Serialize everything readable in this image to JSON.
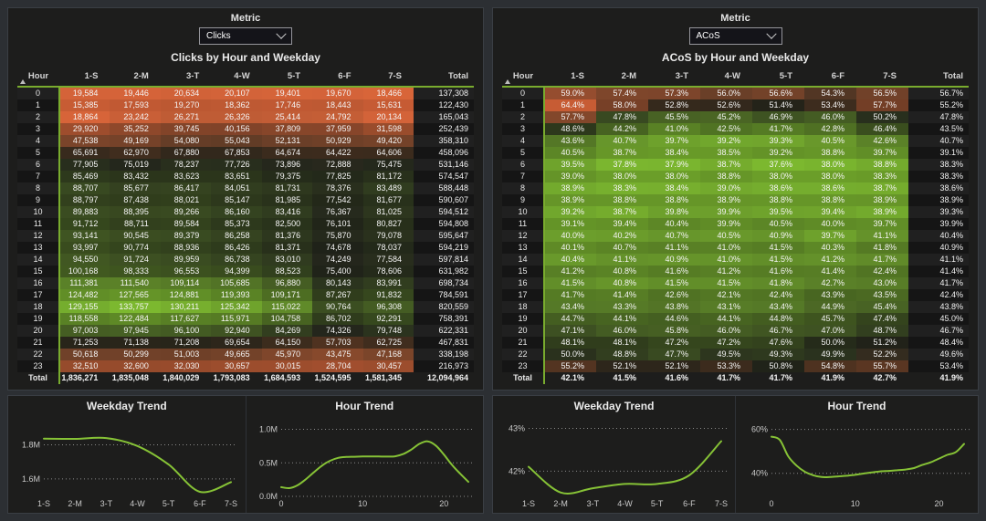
{
  "colors": {
    "page_bg": "#2c2f33",
    "panel_bg": "#1d1d1c",
    "panel_border": "#3a3e44",
    "heat_low": "#e2683b",
    "heat_mid": "#23261c",
    "heat_high": "#7cb82f",
    "accent_green": "#79ac2e",
    "trend_line_green": "#86c236"
  },
  "left_panel": {
    "slicer_label": "Metric",
    "slicer_value": "Clicks",
    "title": "Clicks by Hour and Weekday",
    "columns": [
      "Hour",
      "1-S",
      "2-M",
      "3-T",
      "4-W",
      "5-T",
      "6-F",
      "7-S",
      "Total"
    ],
    "heat": {
      "min": 15385,
      "max": 133757,
      "invert": false
    },
    "rows": [
      {
        "hour": "0",
        "cells": [
          "19,584",
          "19,446",
          "20,634",
          "20,107",
          "19,401",
          "19,670",
          "18,466"
        ],
        "total": "137,308"
      },
      {
        "hour": "1",
        "cells": [
          "15,385",
          "17,593",
          "19,270",
          "18,362",
          "17,746",
          "18,443",
          "15,631"
        ],
        "total": "122,430"
      },
      {
        "hour": "2",
        "cells": [
          "18,864",
          "23,242",
          "26,271",
          "26,326",
          "25,414",
          "24,792",
          "20,134"
        ],
        "total": "165,043"
      },
      {
        "hour": "3",
        "cells": [
          "29,920",
          "35,252",
          "39,745",
          "40,156",
          "37,809",
          "37,959",
          "31,598"
        ],
        "total": "252,439"
      },
      {
        "hour": "4",
        "cells": [
          "47,538",
          "49,169",
          "54,080",
          "55,043",
          "52,131",
          "50,929",
          "49,420"
        ],
        "total": "358,310"
      },
      {
        "hour": "5",
        "cells": [
          "65,691",
          "62,970",
          "67,880",
          "67,853",
          "64,674",
          "64,422",
          "64,606"
        ],
        "total": "458,096"
      },
      {
        "hour": "6",
        "cells": [
          "77,905",
          "75,019",
          "78,237",
          "77,726",
          "73,896",
          "72,888",
          "75,475"
        ],
        "total": "531,146"
      },
      {
        "hour": "7",
        "cells": [
          "85,469",
          "83,432",
          "83,623",
          "83,651",
          "79,375",
          "77,825",
          "81,172"
        ],
        "total": "574,547"
      },
      {
        "hour": "8",
        "cells": [
          "88,707",
          "85,677",
          "86,417",
          "84,051",
          "81,731",
          "78,376",
          "83,489"
        ],
        "total": "588,448"
      },
      {
        "hour": "9",
        "cells": [
          "88,797",
          "87,438",
          "88,021",
          "85,147",
          "81,985",
          "77,542",
          "81,677"
        ],
        "total": "590,607"
      },
      {
        "hour": "10",
        "cells": [
          "89,883",
          "88,395",
          "89,266",
          "86,160",
          "83,416",
          "76,367",
          "81,025"
        ],
        "total": "594,512"
      },
      {
        "hour": "11",
        "cells": [
          "91,712",
          "88,711",
          "89,584",
          "85,373",
          "82,500",
          "76,101",
          "80,827"
        ],
        "total": "594,808"
      },
      {
        "hour": "12",
        "cells": [
          "93,141",
          "90,545",
          "89,379",
          "86,258",
          "81,376",
          "75,870",
          "79,078"
        ],
        "total": "595,647"
      },
      {
        "hour": "13",
        "cells": [
          "93,997",
          "90,774",
          "88,936",
          "86,426",
          "81,371",
          "74,678",
          "78,037"
        ],
        "total": "594,219"
      },
      {
        "hour": "14",
        "cells": [
          "94,550",
          "91,724",
          "89,959",
          "86,738",
          "83,010",
          "74,249",
          "77,584"
        ],
        "total": "597,814"
      },
      {
        "hour": "15",
        "cells": [
          "100,168",
          "98,333",
          "96,553",
          "94,399",
          "88,523",
          "75,400",
          "78,606"
        ],
        "total": "631,982"
      },
      {
        "hour": "16",
        "cells": [
          "111,381",
          "111,540",
          "109,114",
          "105,685",
          "96,880",
          "80,143",
          "83,991"
        ],
        "total": "698,734"
      },
      {
        "hour": "17",
        "cells": [
          "124,482",
          "127,565",
          "124,881",
          "119,393",
          "109,171",
          "87,267",
          "91,832"
        ],
        "total": "784,591"
      },
      {
        "hour": "18",
        "cells": [
          "129,155",
          "133,757",
          "130,211",
          "125,342",
          "115,022",
          "90,764",
          "96,308"
        ],
        "total": "820,559"
      },
      {
        "hour": "19",
        "cells": [
          "118,558",
          "122,484",
          "117,627",
          "115,971",
          "104,758",
          "86,702",
          "92,291"
        ],
        "total": "758,391"
      },
      {
        "hour": "20",
        "cells": [
          "97,003",
          "97,945",
          "96,100",
          "92,940",
          "84,269",
          "74,326",
          "79,748"
        ],
        "total": "622,331"
      },
      {
        "hour": "21",
        "cells": [
          "71,253",
          "71,138",
          "71,208",
          "69,654",
          "64,150",
          "57,703",
          "62,725"
        ],
        "total": "467,831"
      },
      {
        "hour": "22",
        "cells": [
          "50,618",
          "50,299",
          "51,003",
          "49,665",
          "45,970",
          "43,475",
          "47,168"
        ],
        "total": "338,198"
      },
      {
        "hour": "23",
        "cells": [
          "32,510",
          "32,600",
          "32,030",
          "30,657",
          "30,015",
          "28,704",
          "30,457"
        ],
        "total": "216,973"
      }
    ],
    "total_row": {
      "label": "Total",
      "cells": [
        "1,836,271",
        "1,835,048",
        "1,840,029",
        "1,793,083",
        "1,684,593",
        "1,524,595",
        "1,581,345"
      ],
      "total": "12,094,964"
    }
  },
  "right_panel": {
    "slicer_label": "Metric",
    "slicer_value": "ACoS",
    "title": "ACoS by Hour and Weekday",
    "columns": [
      "Hour",
      "1-S",
      "2-M",
      "3-T",
      "4-W",
      "5-T",
      "6-F",
      "7-S",
      "Total"
    ],
    "heat": {
      "min": 37.6,
      "max": 64.4,
      "invert": true
    },
    "rows": [
      {
        "hour": "0",
        "cells": [
          "59.0%",
          "57.4%",
          "57.3%",
          "56.0%",
          "56.6%",
          "54.3%",
          "56.5%"
        ],
        "total": "56.7%"
      },
      {
        "hour": "1",
        "cells": [
          "64.4%",
          "58.0%",
          "52.8%",
          "52.6%",
          "51.4%",
          "53.4%",
          "57.7%"
        ],
        "total": "55.2%"
      },
      {
        "hour": "2",
        "cells": [
          "57.7%",
          "47.8%",
          "45.5%",
          "45.2%",
          "46.9%",
          "46.0%",
          "50.2%"
        ],
        "total": "47.8%"
      },
      {
        "hour": "3",
        "cells": [
          "48.6%",
          "44.2%",
          "41.0%",
          "42.5%",
          "41.7%",
          "42.8%",
          "46.4%"
        ],
        "total": "43.5%"
      },
      {
        "hour": "4",
        "cells": [
          "43.6%",
          "40.7%",
          "39.7%",
          "39.2%",
          "39.3%",
          "40.5%",
          "42.6%"
        ],
        "total": "40.7%"
      },
      {
        "hour": "5",
        "cells": [
          "40.5%",
          "38.7%",
          "38.4%",
          "38.5%",
          "39.2%",
          "38.8%",
          "39.7%"
        ],
        "total": "39.1%"
      },
      {
        "hour": "6",
        "cells": [
          "39.5%",
          "37.8%",
          "37.9%",
          "38.7%",
          "37.6%",
          "38.0%",
          "38.8%"
        ],
        "total": "38.3%"
      },
      {
        "hour": "7",
        "cells": [
          "39.0%",
          "38.0%",
          "38.0%",
          "38.8%",
          "38.0%",
          "38.0%",
          "38.3%"
        ],
        "total": "38.3%"
      },
      {
        "hour": "8",
        "cells": [
          "38.9%",
          "38.3%",
          "38.4%",
          "39.0%",
          "38.6%",
          "38.6%",
          "38.7%"
        ],
        "total": "38.6%"
      },
      {
        "hour": "9",
        "cells": [
          "38.9%",
          "38.8%",
          "38.8%",
          "38.9%",
          "38.8%",
          "38.8%",
          "38.9%"
        ],
        "total": "38.9%"
      },
      {
        "hour": "10",
        "cells": [
          "39.2%",
          "38.7%",
          "39.8%",
          "39.9%",
          "39.5%",
          "39.4%",
          "38.9%"
        ],
        "total": "39.3%"
      },
      {
        "hour": "11",
        "cells": [
          "39.1%",
          "39.4%",
          "40.4%",
          "39.9%",
          "40.5%",
          "40.0%",
          "39.7%"
        ],
        "total": "39.9%"
      },
      {
        "hour": "12",
        "cells": [
          "40.0%",
          "40.2%",
          "40.7%",
          "40.5%",
          "40.9%",
          "39.7%",
          "41.1%"
        ],
        "total": "40.4%"
      },
      {
        "hour": "13",
        "cells": [
          "40.1%",
          "40.7%",
          "41.1%",
          "41.0%",
          "41.5%",
          "40.3%",
          "41.8%"
        ],
        "total": "40.9%"
      },
      {
        "hour": "14",
        "cells": [
          "40.4%",
          "41.1%",
          "40.9%",
          "41.0%",
          "41.5%",
          "41.2%",
          "41.7%"
        ],
        "total": "41.1%"
      },
      {
        "hour": "15",
        "cells": [
          "41.2%",
          "40.8%",
          "41.6%",
          "41.2%",
          "41.6%",
          "41.4%",
          "42.4%"
        ],
        "total": "41.4%"
      },
      {
        "hour": "16",
        "cells": [
          "41.5%",
          "40.8%",
          "41.5%",
          "41.5%",
          "41.8%",
          "42.7%",
          "43.0%"
        ],
        "total": "41.7%"
      },
      {
        "hour": "17",
        "cells": [
          "41.7%",
          "41.4%",
          "42.6%",
          "42.1%",
          "42.4%",
          "43.9%",
          "43.5%"
        ],
        "total": "42.4%"
      },
      {
        "hour": "18",
        "cells": [
          "43.4%",
          "43.3%",
          "43.8%",
          "43.1%",
          "43.4%",
          "44.9%",
          "45.4%"
        ],
        "total": "43.8%"
      },
      {
        "hour": "19",
        "cells": [
          "44.7%",
          "44.1%",
          "44.6%",
          "44.1%",
          "44.8%",
          "45.7%",
          "47.4%"
        ],
        "total": "45.0%"
      },
      {
        "hour": "20",
        "cells": [
          "47.1%",
          "46.0%",
          "45.8%",
          "46.0%",
          "46.7%",
          "47.0%",
          "48.7%"
        ],
        "total": "46.7%"
      },
      {
        "hour": "21",
        "cells": [
          "48.1%",
          "48.1%",
          "47.2%",
          "47.2%",
          "47.6%",
          "50.0%",
          "51.2%"
        ],
        "total": "48.4%"
      },
      {
        "hour": "22",
        "cells": [
          "50.0%",
          "48.8%",
          "47.7%",
          "49.5%",
          "49.3%",
          "49.9%",
          "52.2%"
        ],
        "total": "49.6%"
      },
      {
        "hour": "23",
        "cells": [
          "55.2%",
          "52.1%",
          "52.1%",
          "53.3%",
          "50.8%",
          "54.8%",
          "55.7%"
        ],
        "total": "53.4%"
      }
    ],
    "total_row": {
      "label": "Total",
      "cells": [
        "42.1%",
        "41.5%",
        "41.6%",
        "41.7%",
        "41.7%",
        "41.9%",
        "42.7%"
      ],
      "total": "41.9%"
    }
  },
  "chart_data": [
    {
      "type": "line",
      "title": "Weekday Trend",
      "metric": "Clicks",
      "categories": [
        "1-S",
        "2-M",
        "3-T",
        "4-W",
        "5-T",
        "6-F",
        "7-S"
      ],
      "values": [
        1836271,
        1835048,
        1840029,
        1793083,
        1684593,
        1524595,
        1581345
      ],
      "ylim": [
        1498000,
        1942000
      ],
      "yticks": [
        {
          "value": 1800000,
          "label": "1.8M"
        },
        {
          "value": 1600000,
          "label": "1.6M"
        }
      ],
      "xticks": [
        {
          "i": 0,
          "label": "1-S"
        },
        {
          "i": 1,
          "label": "2-M"
        },
        {
          "i": 2,
          "label": "3-T"
        },
        {
          "i": 3,
          "label": "4-W"
        },
        {
          "i": 4,
          "label": "5-T"
        },
        {
          "i": 5,
          "label": "6-F"
        },
        {
          "i": 6,
          "label": "7-S"
        }
      ],
      "grid": "dotted",
      "legend": "none"
    },
    {
      "type": "line",
      "title": "Hour Trend",
      "metric": "Clicks",
      "categories": [
        0,
        1,
        2,
        3,
        4,
        5,
        6,
        7,
        8,
        9,
        10,
        11,
        12,
        13,
        14,
        15,
        16,
        17,
        18,
        19,
        20,
        21,
        22,
        23
      ],
      "values": [
        137308,
        122430,
        165043,
        252439,
        358310,
        458096,
        531146,
        574547,
        588448,
        590607,
        594512,
        594808,
        595647,
        594219,
        597814,
        631982,
        698734,
        784591,
        820559,
        758391,
        622331,
        467831,
        338198,
        216973
      ],
      "ylim": [
        0,
        1130000
      ],
      "yticks": [
        {
          "value": 1000000,
          "label": "1.0M"
        },
        {
          "value": 500000,
          "label": "0.5M"
        },
        {
          "value": 0,
          "label": "0.0M"
        }
      ],
      "xticks": [
        {
          "i": 0,
          "label": "0"
        },
        {
          "i": 10,
          "label": "10"
        },
        {
          "i": 20,
          "label": "20"
        }
      ],
      "grid": "dotted",
      "legend": "none"
    },
    {
      "type": "line",
      "title": "Weekday Trend",
      "metric": "ACoS",
      "categories": [
        "1-S",
        "2-M",
        "3-T",
        "4-W",
        "5-T",
        "6-F",
        "7-S"
      ],
      "values": [
        42.1,
        41.5,
        41.6,
        41.7,
        41.7,
        41.9,
        42.7
      ],
      "ylim": [
        41.41,
        43.18
      ],
      "yticks": [
        {
          "value": 43,
          "label": "43%"
        },
        {
          "value": 42,
          "label": "42%"
        }
      ],
      "xticks": [
        {
          "i": 0,
          "label": "1-S"
        },
        {
          "i": 1,
          "label": "2-M"
        },
        {
          "i": 2,
          "label": "3-T"
        },
        {
          "i": 3,
          "label": "4-W"
        },
        {
          "i": 4,
          "label": "5-T"
        },
        {
          "i": 5,
          "label": "6-F"
        },
        {
          "i": 6,
          "label": "7-S"
        }
      ],
      "grid": "dotted",
      "legend": "none"
    },
    {
      "type": "line",
      "title": "Hour Trend",
      "metric": "ACoS",
      "categories": [
        0,
        1,
        2,
        3,
        4,
        5,
        6,
        7,
        8,
        9,
        10,
        11,
        12,
        13,
        14,
        15,
        16,
        17,
        18,
        19,
        20,
        21,
        22,
        23
      ],
      "values": [
        56.7,
        55.2,
        47.8,
        43.5,
        40.7,
        39.1,
        38.3,
        38.3,
        38.6,
        38.9,
        39.3,
        39.9,
        40.4,
        40.9,
        41.1,
        41.4,
        41.7,
        42.4,
        43.8,
        45.0,
        46.7,
        48.4,
        49.6,
        53.4
      ],
      "ylim": [
        29.5,
        64.0
      ],
      "yticks": [
        {
          "value": 60,
          "label": "60%"
        },
        {
          "value": 40,
          "label": "40%"
        }
      ],
      "xticks": [
        {
          "i": 0,
          "label": "0"
        },
        {
          "i": 10,
          "label": "10"
        },
        {
          "i": 20,
          "label": "20"
        }
      ],
      "grid": "dotted",
      "legend": "none"
    }
  ]
}
